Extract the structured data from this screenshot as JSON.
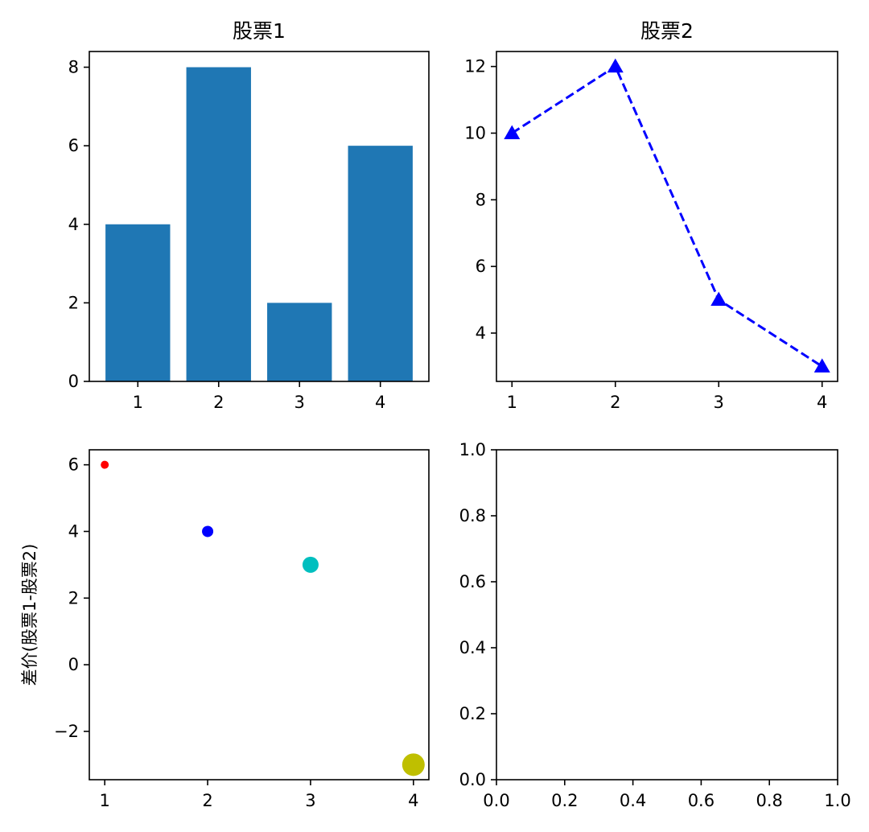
{
  "chart_data": [
    {
      "type": "bar",
      "title": "股票1",
      "xlabel": "",
      "ylabel": "",
      "x": [
        1,
        2,
        3,
        4
      ],
      "values": [
        4,
        8,
        2,
        6
      ],
      "bar_color": "#1f77b4",
      "xlim": [
        0.4,
        4.6
      ],
      "ylim": [
        0,
        8.4
      ],
      "xticks": [
        1,
        2,
        3,
        4
      ],
      "yticks": [
        0,
        2,
        4,
        6,
        8
      ],
      "xtick_labels": [
        "1",
        "2",
        "3",
        "4"
      ],
      "ytick_labels": [
        "0",
        "2",
        "4",
        "6",
        "8"
      ],
      "grid": false
    },
    {
      "type": "line",
      "title": "股票2",
      "xlabel": "",
      "ylabel": "",
      "x": [
        1,
        2,
        3,
        4
      ],
      "values": [
        10,
        12,
        5,
        3
      ],
      "line_color": "#0000ff",
      "line_style": "dashed",
      "marker": "triangle-up",
      "xlim": [
        0.85,
        4.15
      ],
      "ylim": [
        2.55,
        12.45
      ],
      "xticks": [
        1,
        2,
        3,
        4
      ],
      "yticks": [
        4,
        6,
        8,
        10,
        12
      ],
      "xtick_labels": [
        "1",
        "2",
        "3",
        "4"
      ],
      "ytick_labels": [
        "4",
        "6",
        "8",
        "10",
        "12"
      ],
      "grid": false
    },
    {
      "type": "scatter",
      "title": "",
      "xlabel": "",
      "ylabel": "差价(股票1-股票2)",
      "points": [
        {
          "x": 1,
          "y": 6,
          "color": "#ff0000",
          "size": 1
        },
        {
          "x": 2,
          "y": 4,
          "color": "#0000ff",
          "size": 2
        },
        {
          "x": 3,
          "y": 3,
          "color": "#00bfbf",
          "size": 3
        },
        {
          "x": 4,
          "y": -3,
          "color": "#bfbf00",
          "size": 4
        }
      ],
      "xlim": [
        0.85,
        4.15
      ],
      "ylim": [
        -3.45,
        6.45
      ],
      "xticks": [
        1,
        2,
        3,
        4
      ],
      "yticks": [
        -2,
        0,
        2,
        4,
        6
      ],
      "xtick_labels": [
        "1",
        "2",
        "3",
        "4"
      ],
      "ytick_labels": [
        "−2",
        "0",
        "2",
        "4",
        "6"
      ],
      "grid": false
    },
    {
      "type": "line",
      "title": "",
      "xlabel": "",
      "ylabel": "",
      "empty": true,
      "xlim": [
        0,
        1
      ],
      "ylim": [
        0,
        1
      ],
      "xticks": [
        0,
        0.2,
        0.4,
        0.6,
        0.8,
        1.0
      ],
      "yticks": [
        0,
        0.2,
        0.4,
        0.6,
        0.8,
        1.0
      ],
      "xtick_labels": [
        "0.0",
        "0.2",
        "0.4",
        "0.6",
        "0.8",
        "1.0"
      ],
      "ytick_labels": [
        "0.0",
        "0.2",
        "0.4",
        "0.6",
        "0.8",
        "1.0"
      ],
      "grid": false
    }
  ]
}
